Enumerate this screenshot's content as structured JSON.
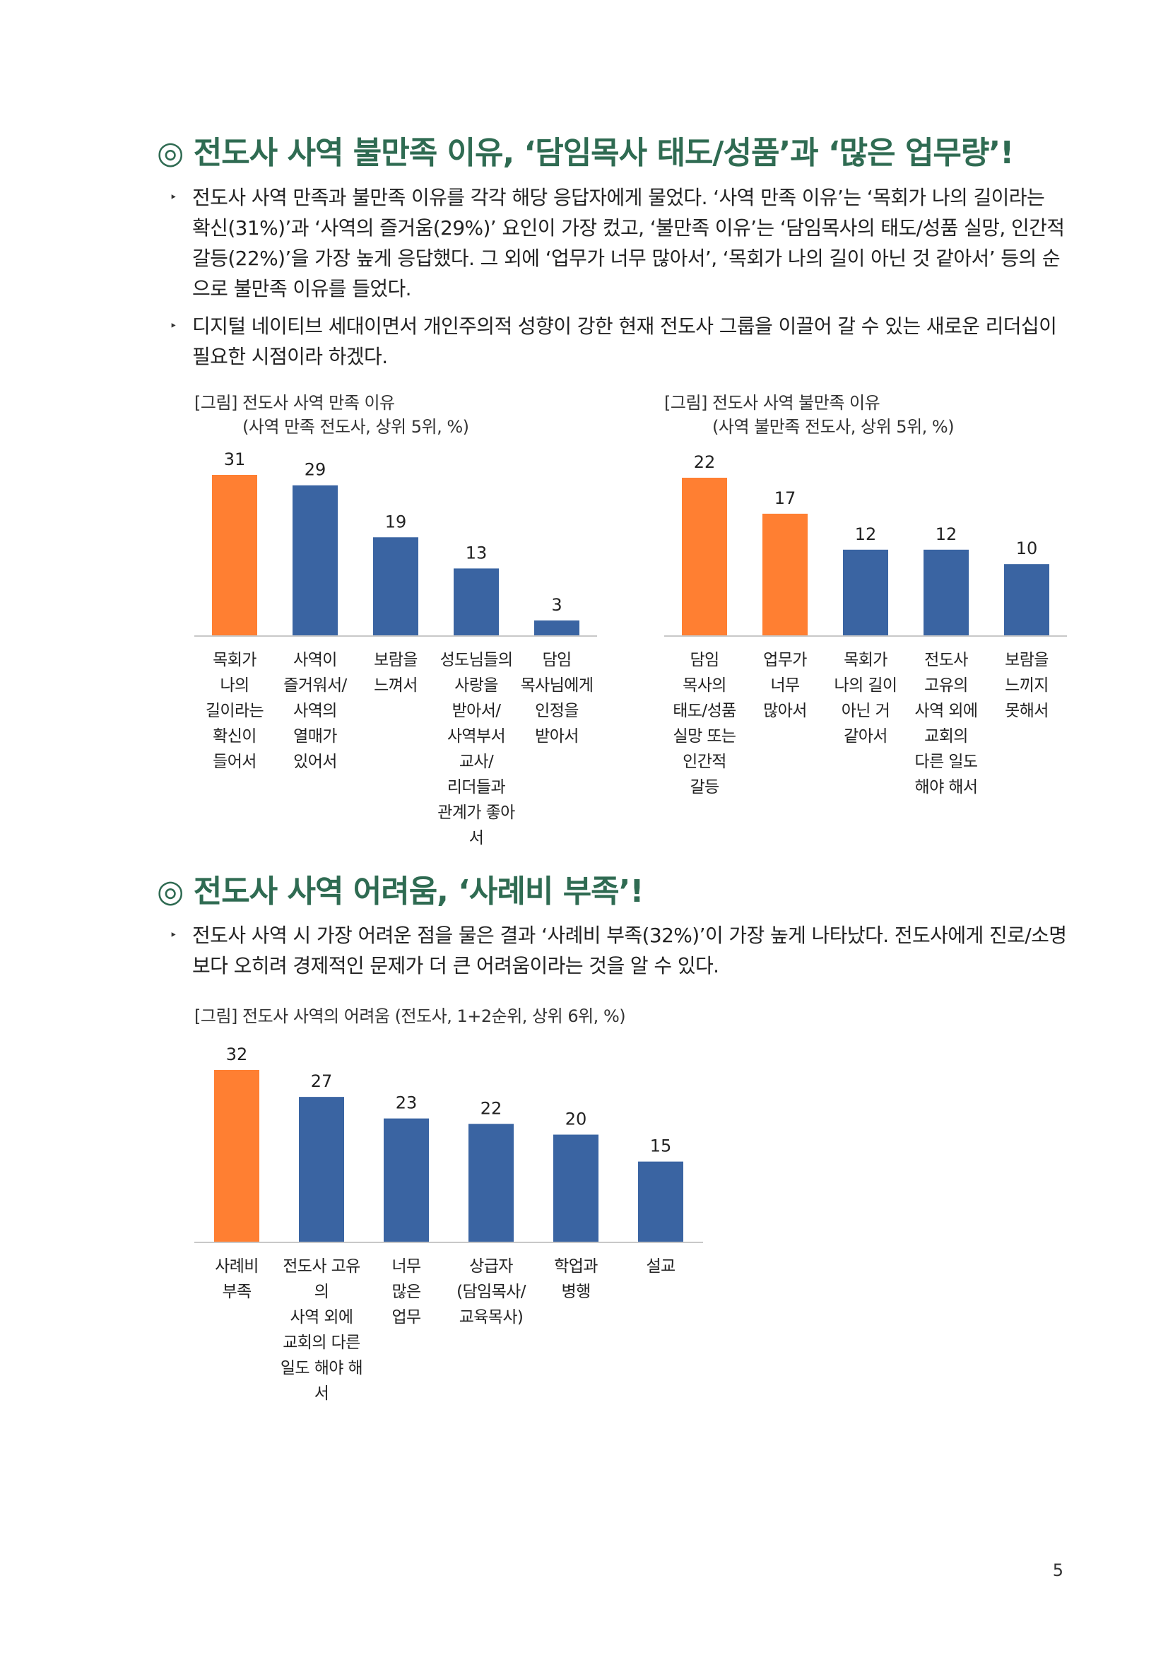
{
  "sections": [
    {
      "heading": "◎ 전도사 사역 불만족 이유, ‘담임목사 태도/성품’과 ‘많은 업무량’!",
      "bullets": [
        "전도사 사역 만족과 불만족 이유를 각각 해당 응답자에게 물었다. ‘사역 만족 이유’는 ‘목회가 나의 길이라는 확신(31%)’과 ‘사역의 즐거움(29%)’ 요인이 가장 컸고, ‘불만족 이유’는 ‘담임목사의 태도/성품 실망, 인간적 갈등(22%)’을 가장 높게 응답했다. 그 외에 ‘업무가 너무 많아서’, ‘목회가 나의 길이 아닌 것 같아서’ 등의 순으로 불만족 이유를 들었다.",
        "디지털 네이티브 세대이면서 개인주의적 성향이 강한 현재 전도사 그룹을 이끌어 갈 수 있는 새로운 리더십이 필요한 시점이라 하겠다."
      ]
    },
    {
      "heading": "◎ 전도사 사역 어려움, ‘사례비 부족’!",
      "bullets": [
        "전도사 사역 시 가장 어려운 점을 물은 결과 ‘사례비 부족(32%)’이 가장 높게 나타났다. 전도사에게 진로/소명보다 오히려 경제적인 문제가 더 큰 어려움이라는 것을 알 수 있다."
      ]
    }
  ],
  "bullet_mark": "‣",
  "colors": {
    "orange": "#ff7f32",
    "blue": "#3a64a2",
    "heading": "#2f6b52",
    "axis": "#c8c8c8"
  },
  "chart_data": [
    {
      "type": "bar",
      "title": "[그림] 전도사 사역 만족 이유",
      "subtitle": "(사역 만족 전도사, 상위 5위, %)",
      "categories": [
        "목회가\n나의\n길이라는\n확신이\n들어서",
        "사역이\n즐거워서/\n사역의\n열매가\n있어서",
        "보람을\n느껴서",
        "성도님들의\n사랑을\n받아서/\n사역부서\n교사/\n리더들과\n관계가 좋아서",
        "담임\n목사님에게\n인정을\n받아서"
      ],
      "values": [
        31,
        29,
        19,
        13,
        3
      ],
      "highlight": [
        true,
        false,
        false,
        false,
        false
      ],
      "ylim": [
        0,
        31
      ]
    },
    {
      "type": "bar",
      "title": "[그림] 전도사 사역 불만족 이유",
      "subtitle": "(사역 불만족 전도사, 상위 5위, %)",
      "categories": [
        "담임\n목사의\n태도/성품\n실망 또는\n인간적\n갈등",
        "업무가\n너무\n많아서",
        "목회가\n나의 길이\n아닌 거\n같아서",
        "전도사\n고유의\n사역 외에\n교회의\n다른 일도\n해야 해서",
        "보람을\n느끼지\n못해서"
      ],
      "values": [
        22,
        17,
        12,
        12,
        10
      ],
      "highlight": [
        true,
        true,
        false,
        false,
        false
      ],
      "ylim": [
        0,
        22
      ]
    },
    {
      "type": "bar",
      "title": "[그림] 전도사 사역의 어려움 (전도사, 1+2순위, 상위 6위, %)",
      "subtitle": "",
      "categories": [
        "사례비\n부족",
        "전도사 고유의\n사역 외에\n교회의 다른\n일도 해야 해서",
        "너무\n많은\n업무",
        "상급자\n(담임목사/\n교육목사)",
        "학업과\n병행",
        "설교"
      ],
      "values": [
        32,
        27,
        23,
        22,
        20,
        15
      ],
      "highlight": [
        true,
        false,
        false,
        false,
        false,
        false
      ],
      "ylim": [
        0,
        32
      ]
    }
  ],
  "page_number": "5"
}
